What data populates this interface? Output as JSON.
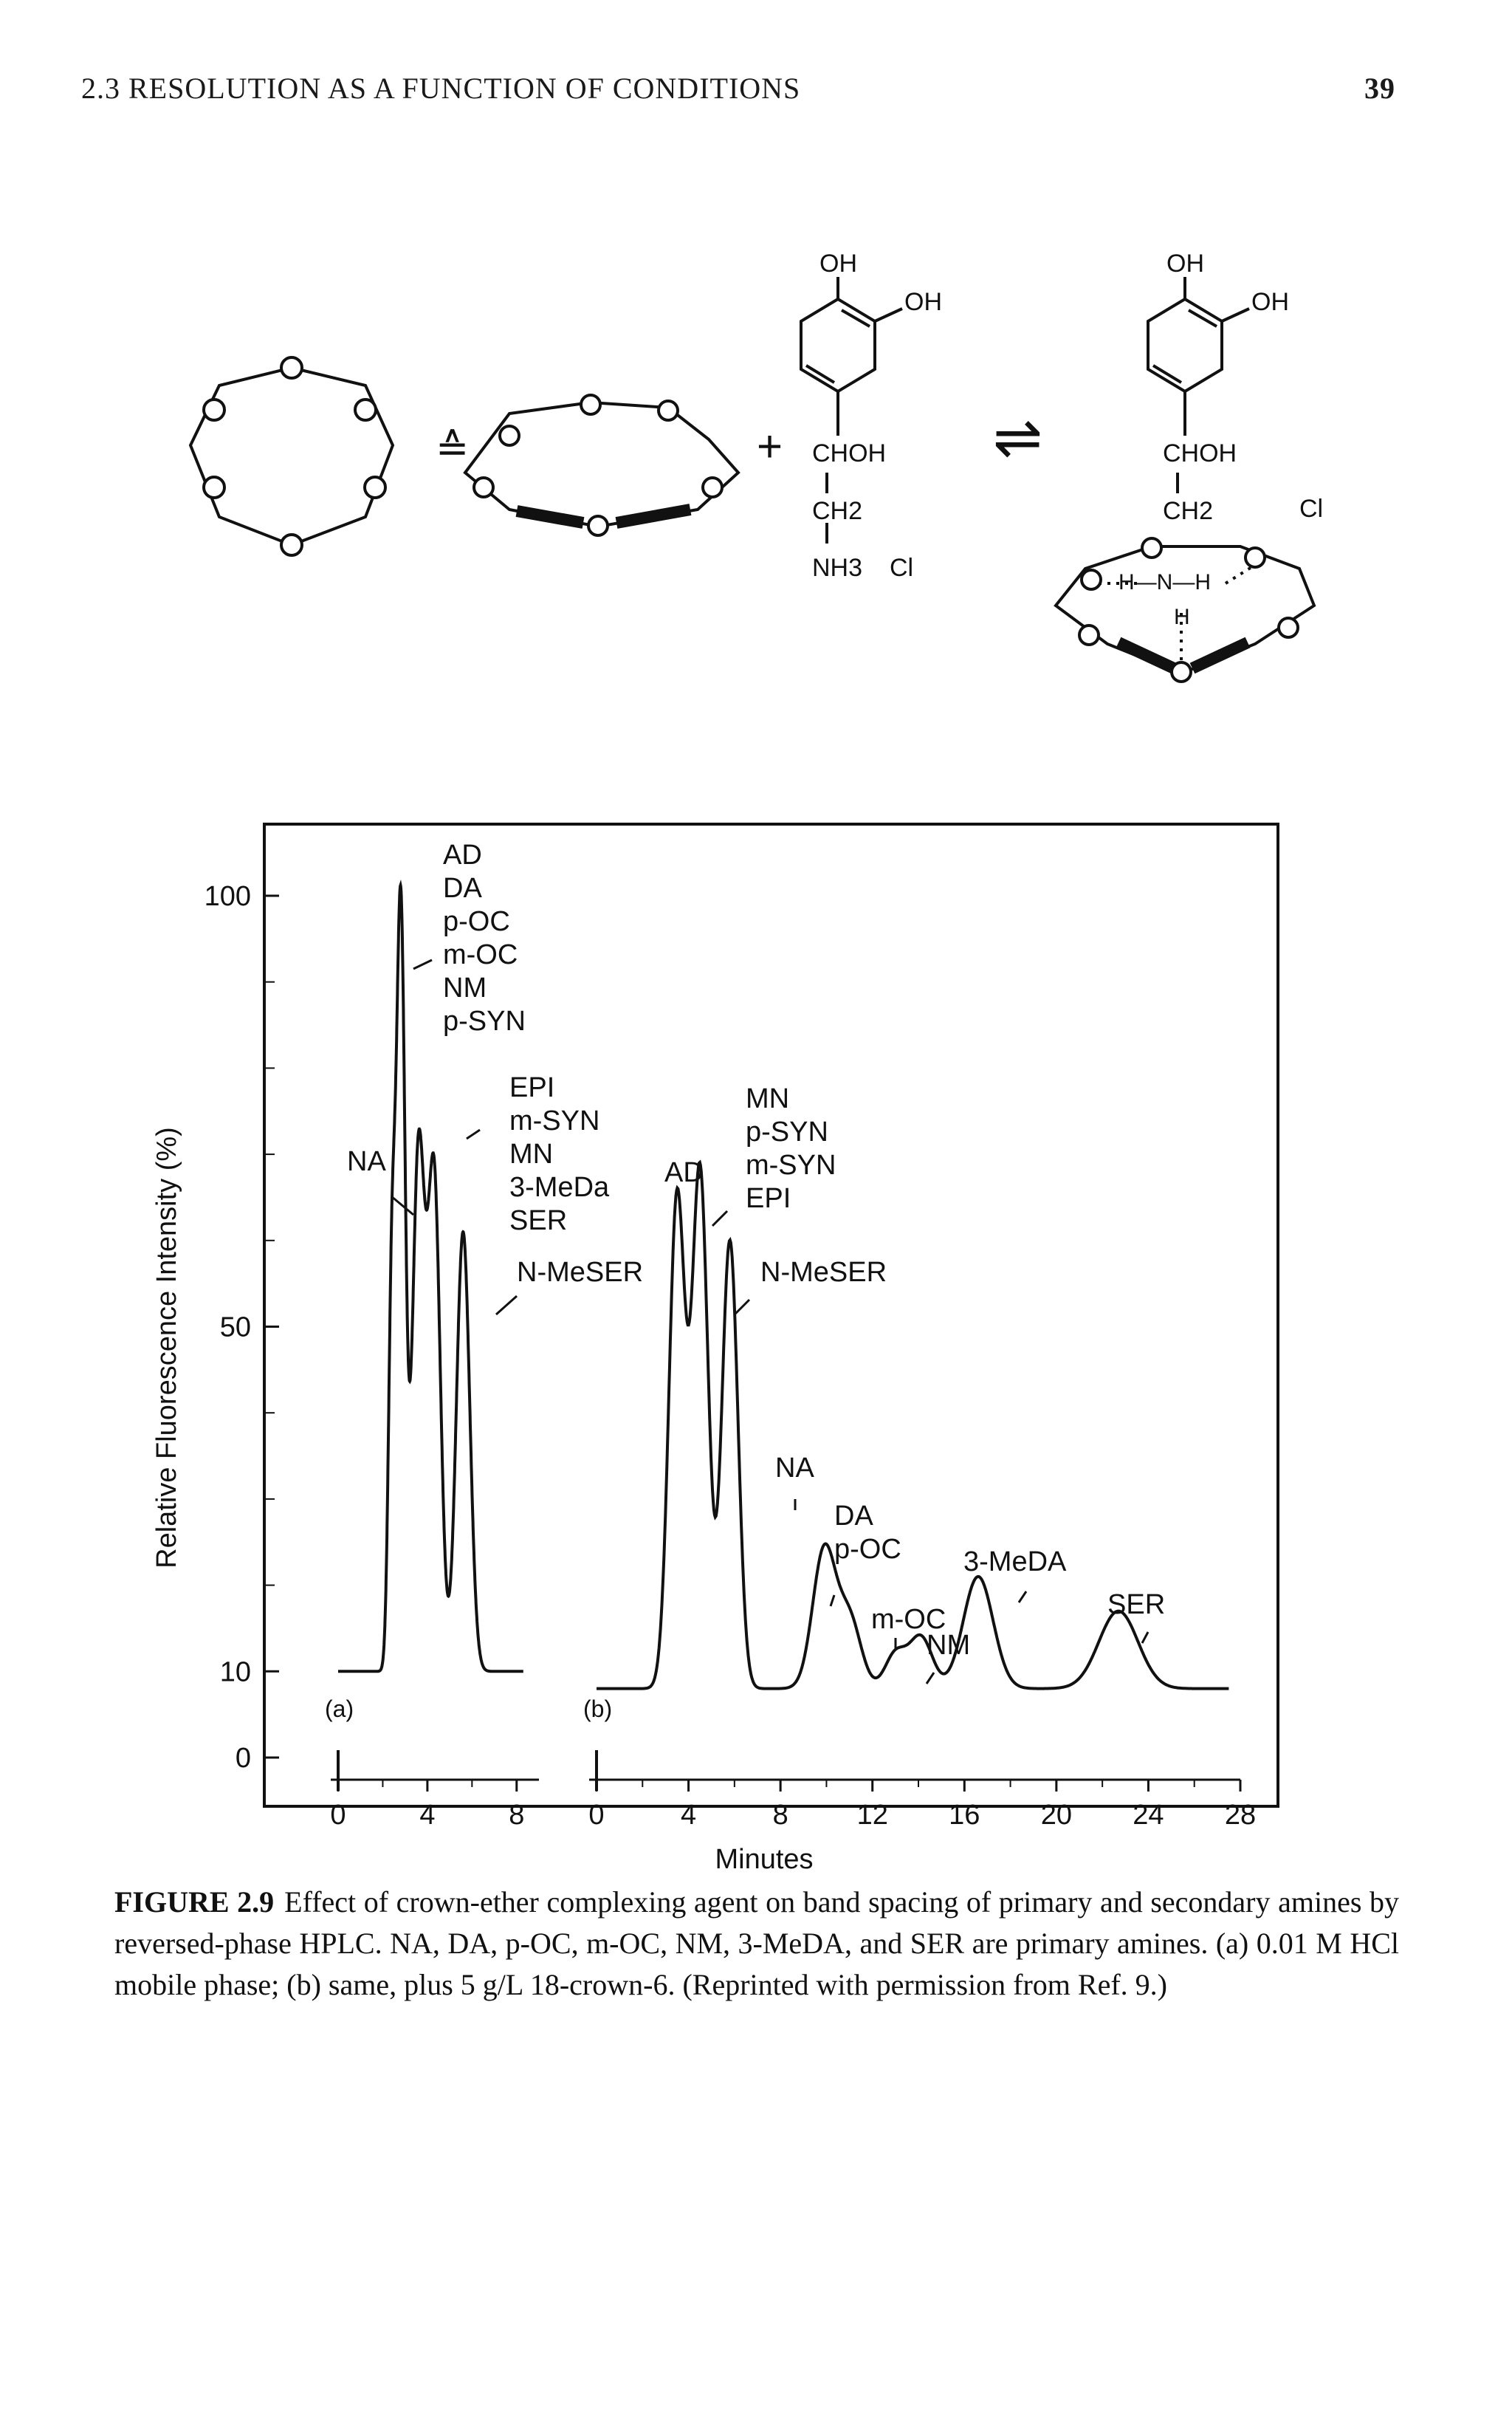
{
  "running_head": {
    "title": "2.3 RESOLUTION AS A FUNCTION OF CONDITIONS",
    "page_number": "39"
  },
  "scheme": {
    "equivalence_symbol": "≙",
    "plus_symbol": "+",
    "equilibrium_symbol": "⇌",
    "reactant_amine": {
      "oh_top": "OH",
      "oh_side": "OH",
      "choh": "CHOH",
      "ch2": "CH2",
      "nh3": "NH3",
      "cl": "Cl"
    },
    "complex": {
      "oh_top": "OH",
      "oh_side": "OH",
      "choh": "CHOH",
      "ch2": "CH2",
      "cl": "Cl",
      "ammonium": "H—N—H",
      "h_bottom": "H"
    }
  },
  "chart_data": {
    "type": "line",
    "ylabel": "Relative Fluorescence Intensity (%)",
    "xlabel": "Minutes",
    "yticks": [
      "0",
      "10",
      "50",
      "100"
    ],
    "panels": [
      {
        "label": "(a)",
        "xlim": [
          0,
          9
        ],
        "xticks": [
          "0",
          "4",
          "8"
        ],
        "baseline": 10,
        "peaks": [
          {
            "t": 2.4,
            "height": 51,
            "width": 0.15
          },
          {
            "t": 2.8,
            "height": 99,
            "width": 0.2
          },
          {
            "t": 3.6,
            "height": 70,
            "width": 0.28
          },
          {
            "t": 4.3,
            "height": 67,
            "width": 0.28
          },
          {
            "t": 5.6,
            "height": 61,
            "width": 0.3
          }
        ],
        "annotations": [
          {
            "lines": [
              "AD",
              "DA",
              "p-OC",
              "m-OC",
              "NM",
              "p-SYN"
            ]
          },
          {
            "lines": [
              "EPI",
              "m-SYN",
              "MN",
              "3-MeDa",
              "SER"
            ]
          },
          {
            "lines": [
              "NA"
            ]
          },
          {
            "lines": [
              "N-MeSER"
            ]
          }
        ]
      },
      {
        "label": "(b)",
        "xlim": [
          0,
          28
        ],
        "xticks": [
          "0",
          "4",
          "8",
          "12",
          "16",
          "20",
          "24",
          "28"
        ],
        "baseline": 8,
        "peaks": [
          {
            "t": 3.5,
            "height": 65,
            "width": 0.35
          },
          {
            "t": 4.5,
            "height": 68,
            "width": 0.35
          },
          {
            "t": 5.8,
            "height": 60,
            "width": 0.35
          },
          {
            "t": 9.9,
            "height": 24,
            "width": 0.5
          },
          {
            "t": 11.0,
            "height": 16,
            "width": 0.5
          },
          {
            "t": 13.0,
            "height": 12,
            "width": 0.45
          },
          {
            "t": 14.1,
            "height": 14,
            "width": 0.5
          },
          {
            "t": 16.6,
            "height": 21,
            "width": 0.65
          },
          {
            "t": 22.7,
            "height": 17,
            "width": 0.85
          }
        ],
        "annotations": [
          {
            "lines": [
              "AD"
            ]
          },
          {
            "lines": [
              "MN",
              "p-SYN",
              "m-SYN",
              "EPI"
            ]
          },
          {
            "lines": [
              "N-MeSER"
            ]
          },
          {
            "lines": [
              "NA"
            ]
          },
          {
            "lines": [
              "DA",
              "p-OC"
            ]
          },
          {
            "lines": [
              "m-OC"
            ]
          },
          {
            "lines": [
              "NM"
            ]
          },
          {
            "lines": [
              "3-MeDA"
            ]
          },
          {
            "lines": [
              "SER"
            ]
          }
        ]
      }
    ]
  },
  "caption": {
    "label": "FIGURE 2.9",
    "text": "Effect of crown-ether complexing agent on band spacing of primary and secondary amines by reversed-phase HPLC. NA, DA, p-OC, m-OC, NM, 3-MeDA, and SER are primary amines. (a) 0.01 M HCl mobile phase; (b) same, plus 5 g/L 18-crown-6. (Reprinted with permission from Ref. 9.)"
  }
}
